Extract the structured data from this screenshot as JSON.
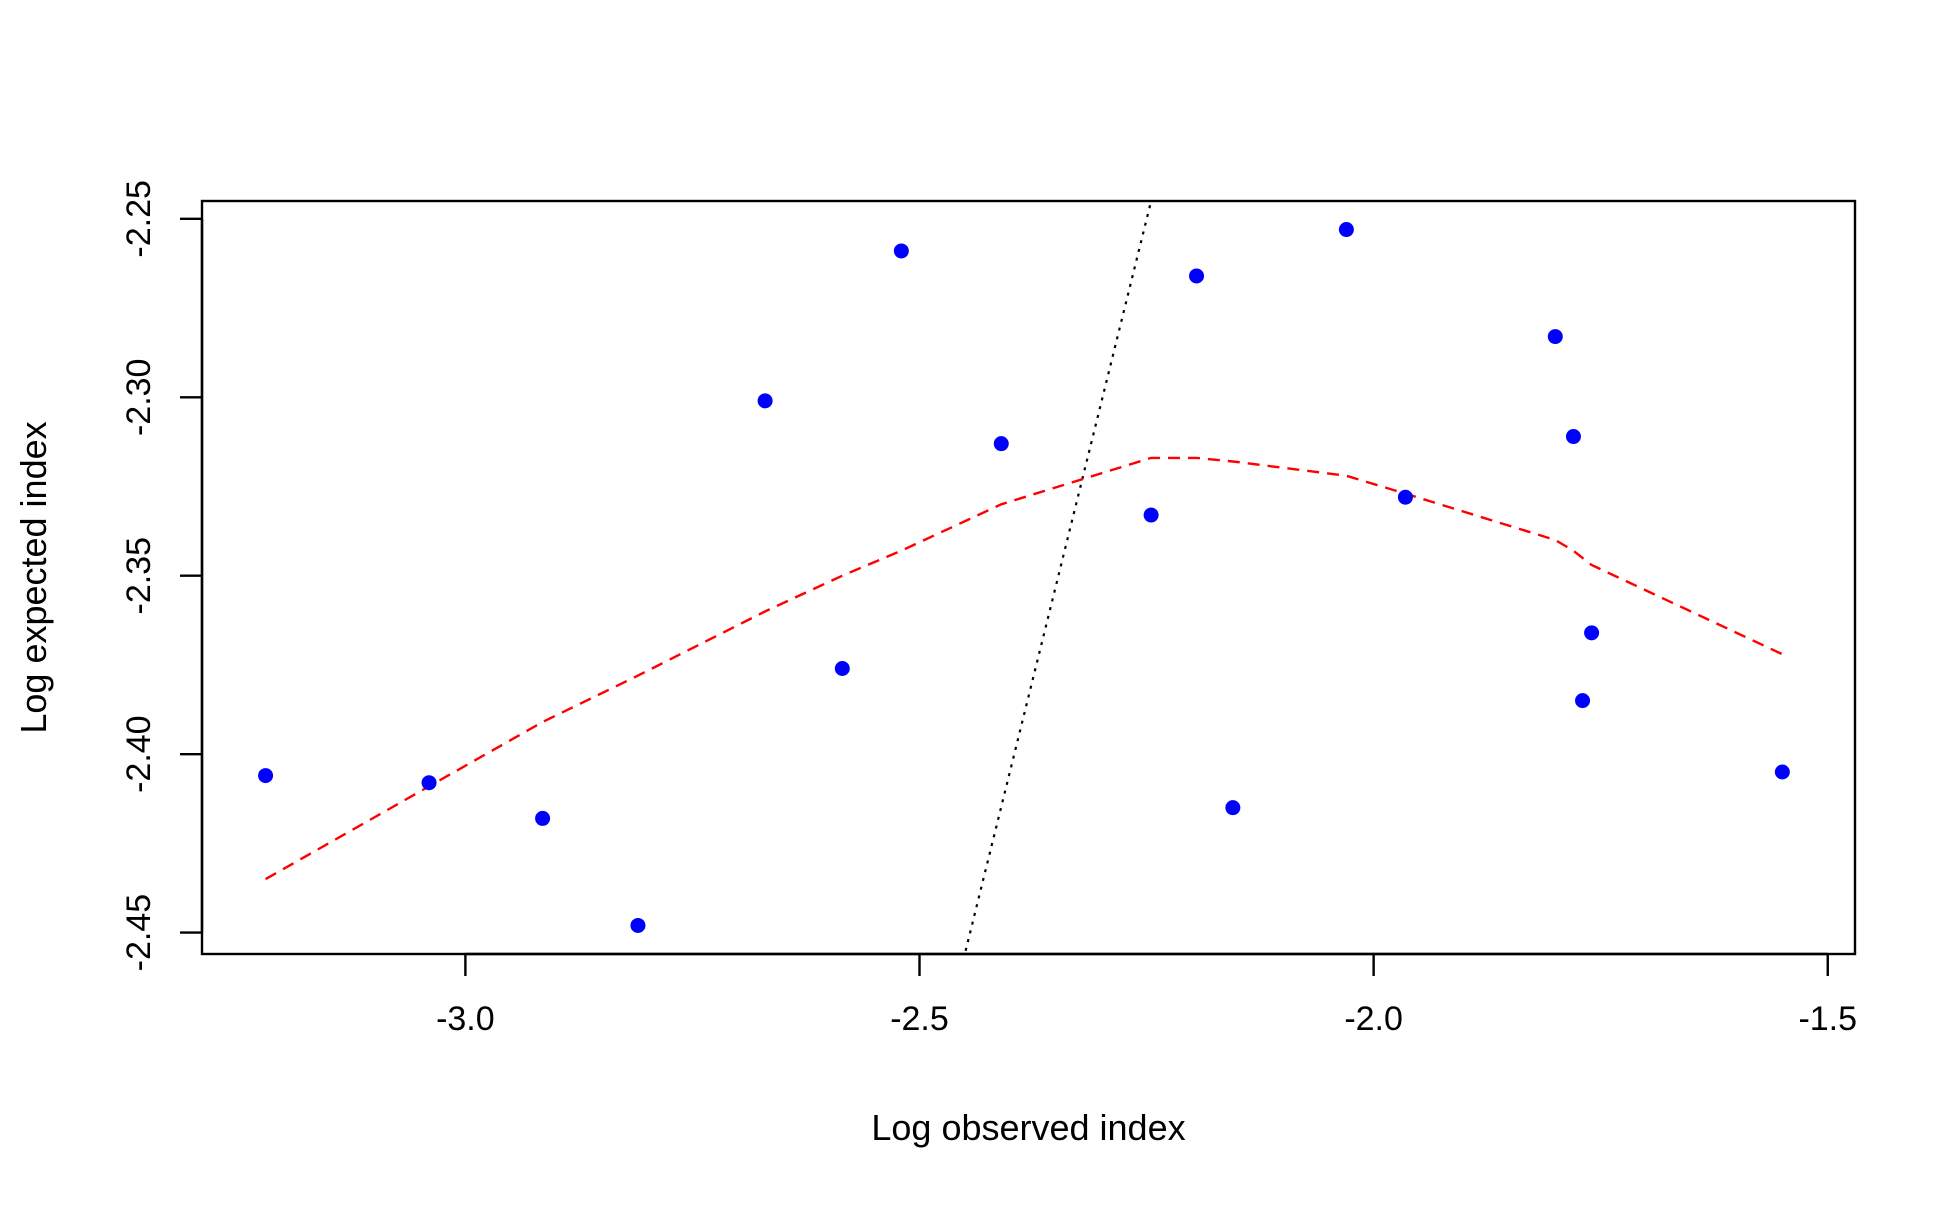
{
  "chart_data": {
    "type": "scatter",
    "title": "",
    "xlabel": "Log observed index",
    "ylabel": "Log expected index",
    "xlim": [
      -3.29,
      -1.47
    ],
    "ylim": [
      -2.456,
      -2.245
    ],
    "x_ticks": [
      -3.0,
      -2.5,
      -2.0,
      -1.5
    ],
    "x_tick_labels": [
      "-3.0",
      "-2.5",
      "-2.0",
      "-1.5"
    ],
    "y_ticks": [
      -2.25,
      -2.3,
      -2.35,
      -2.4,
      -2.45
    ],
    "y_tick_labels": [
      "-2.25",
      "-2.30",
      "-2.35",
      "-2.40",
      "-2.45"
    ],
    "grid": false,
    "legend": "none",
    "points": {
      "color": "#0000ff",
      "x": [
        -3.22,
        -3.04,
        -2.915,
        -2.81,
        -2.67,
        -2.585,
        -2.52,
        -2.41,
        -2.245,
        -2.195,
        -2.155,
        -2.03,
        -1.965,
        -1.8,
        -1.78,
        -1.77,
        -1.76,
        -1.55
      ],
      "y": [
        -2.406,
        -2.408,
        -2.418,
        -2.448,
        -2.301,
        -2.376,
        -2.259,
        -2.313,
        -2.333,
        -2.266,
        -2.415,
        -2.253,
        -2.328,
        -2.283,
        -2.311,
        -2.385,
        -2.366,
        -2.405
      ]
    },
    "smooth_line": {
      "color": "#ff0000",
      "style": "dashed",
      "x": [
        -3.22,
        -3.04,
        -2.915,
        -2.81,
        -2.67,
        -2.585,
        -2.52,
        -2.41,
        -2.245,
        -2.195,
        -2.155,
        -2.03,
        -1.965,
        -1.8,
        -1.78,
        -1.77,
        -1.76,
        -1.55
      ],
      "y": [
        -2.435,
        -2.409,
        -2.391,
        -2.378,
        -2.36,
        -2.35,
        -2.343,
        -2.33,
        -2.317,
        -2.317,
        -2.318,
        -2.322,
        -2.327,
        -2.34,
        -2.343,
        -2.345,
        -2.347,
        -2.372
      ]
    },
    "reference_line": {
      "color": "#000000",
      "style": "dotted",
      "x": [
        -2.454,
        -2.245
      ],
      "y": [
        -2.46,
        -2.245
      ]
    }
  }
}
